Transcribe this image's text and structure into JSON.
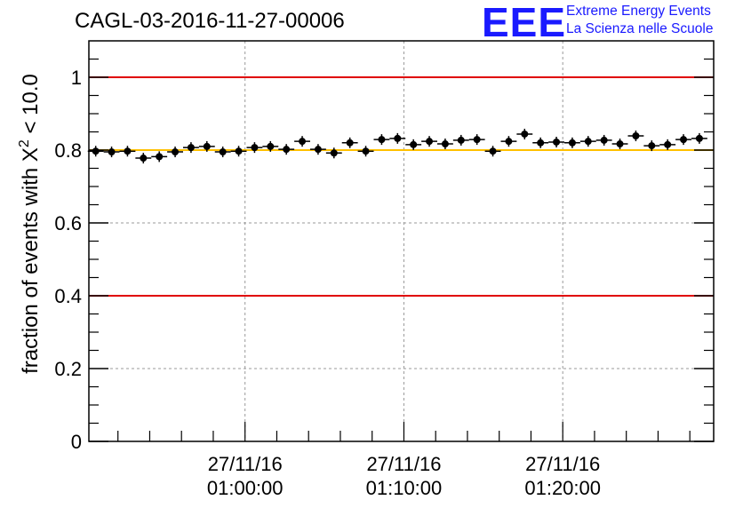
{
  "title": "CAGL-03-2016-11-27-00006",
  "logo": {
    "mark": "EEE",
    "line1": "Extreme Energy Events",
    "line2": "La Scienza nelle Scuole",
    "color": "#1a1aff"
  },
  "chart_data": {
    "type": "scatter",
    "title": "CAGL-03-2016-11-27-00006",
    "ylabel_main": "fraction of events with ",
    "ylabel_symbol": "X",
    "ylabel_sup": "2",
    "ylabel_tail": " < 10.0",
    "xlabel": "",
    "ylim": [
      0,
      1.1
    ],
    "xlim_minutes": [
      50.17,
      89.5
    ],
    "y_ticks": [
      "0",
      "0.2",
      "0.4",
      "0.6",
      "0.8",
      "1"
    ],
    "y_tick_values": [
      0,
      0.2,
      0.4,
      0.6,
      0.8,
      1.0
    ],
    "x_ticks": [
      {
        "minute": 60,
        "date": "27/11/16",
        "time": "01:00:00"
      },
      {
        "minute": 70,
        "date": "27/11/16",
        "time": "01:10:00"
      },
      {
        "minute": 80,
        "date": "27/11/16",
        "time": "01:20:00"
      }
    ],
    "grid": true,
    "reference_lines": [
      {
        "value": 1.0,
        "color": "#e00000"
      },
      {
        "value": 0.4,
        "color": "#e00000"
      },
      {
        "value": 0.8,
        "color": "#ffc000"
      }
    ],
    "point_half_width_minutes": 0.5,
    "points": [
      {
        "x": 50.6,
        "y": 0.797
      },
      {
        "x": 51.6,
        "y": 0.795
      },
      {
        "x": 52.6,
        "y": 0.797
      },
      {
        "x": 53.6,
        "y": 0.778
      },
      {
        "x": 54.6,
        "y": 0.782
      },
      {
        "x": 55.6,
        "y": 0.795
      },
      {
        "x": 56.6,
        "y": 0.807
      },
      {
        "x": 57.6,
        "y": 0.81
      },
      {
        "x": 58.6,
        "y": 0.795
      },
      {
        "x": 59.6,
        "y": 0.797
      },
      {
        "x": 60.6,
        "y": 0.807
      },
      {
        "x": 61.6,
        "y": 0.81
      },
      {
        "x": 62.6,
        "y": 0.802
      },
      {
        "x": 63.6,
        "y": 0.824
      },
      {
        "x": 64.6,
        "y": 0.802
      },
      {
        "x": 65.6,
        "y": 0.792
      },
      {
        "x": 66.6,
        "y": 0.82
      },
      {
        "x": 67.6,
        "y": 0.797
      },
      {
        "x": 68.6,
        "y": 0.829
      },
      {
        "x": 69.6,
        "y": 0.832
      },
      {
        "x": 70.6,
        "y": 0.815
      },
      {
        "x": 71.6,
        "y": 0.824
      },
      {
        "x": 72.6,
        "y": 0.817
      },
      {
        "x": 73.6,
        "y": 0.827
      },
      {
        "x": 74.6,
        "y": 0.829
      },
      {
        "x": 75.6,
        "y": 0.797
      },
      {
        "x": 76.6,
        "y": 0.824
      },
      {
        "x": 77.6,
        "y": 0.844
      },
      {
        "x": 78.6,
        "y": 0.82
      },
      {
        "x": 79.6,
        "y": 0.822
      },
      {
        "x": 80.6,
        "y": 0.82
      },
      {
        "x": 81.6,
        "y": 0.824
      },
      {
        "x": 82.6,
        "y": 0.827
      },
      {
        "x": 83.6,
        "y": 0.817
      },
      {
        "x": 84.6,
        "y": 0.839
      },
      {
        "x": 85.6,
        "y": 0.812
      },
      {
        "x": 86.6,
        "y": 0.815
      },
      {
        "x": 87.6,
        "y": 0.829
      },
      {
        "x": 88.6,
        "y": 0.832
      }
    ]
  }
}
